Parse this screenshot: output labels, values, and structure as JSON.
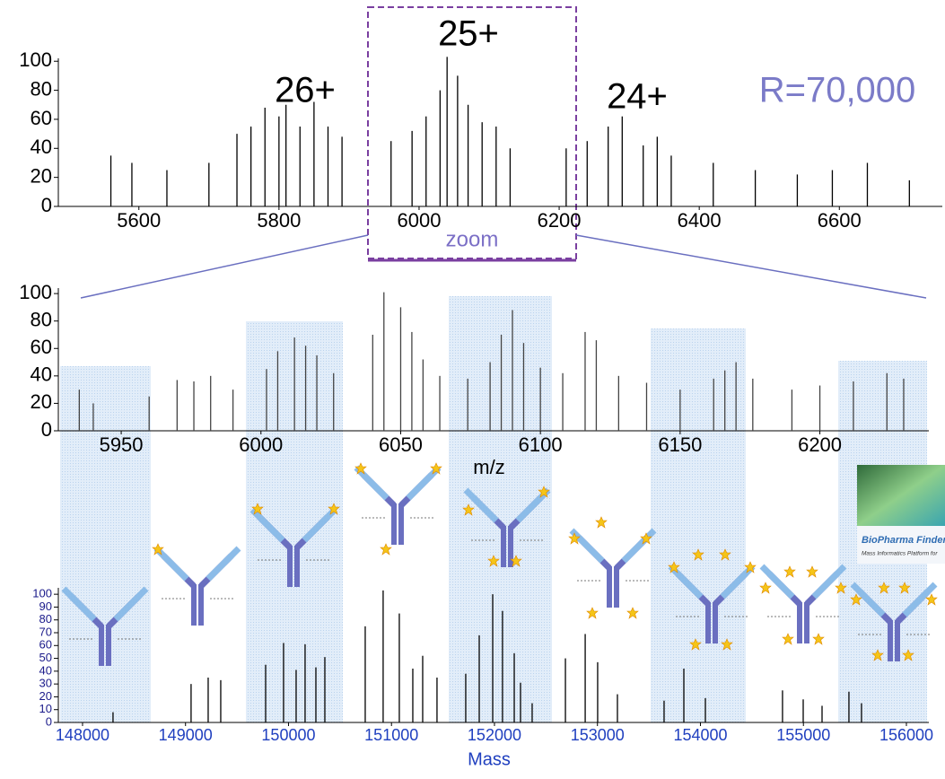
{
  "chart_data": [
    {
      "type": "stick",
      "annotations": [
        "26+",
        "25+",
        "24+"
      ],
      "resolution": "R=70,000",
      "zoom_label": "zoom",
      "color": "#000000",
      "x": [
        5560,
        5590,
        5640,
        5700,
        5740,
        5760,
        5780,
        5800,
        5810,
        5830,
        5850,
        5870,
        5890,
        5960,
        5990,
        6010,
        6030,
        6040,
        6055,
        6070,
        6090,
        6110,
        6130,
        6210,
        6240,
        6270,
        6290,
        6320,
        6340,
        6360,
        6420,
        6480,
        6540,
        6590,
        6640,
        6700
      ],
      "values": [
        35,
        30,
        25,
        30,
        50,
        55,
        68,
        62,
        70,
        55,
        72,
        55,
        48,
        45,
        52,
        62,
        80,
        103,
        90,
        70,
        58,
        55,
        40,
        40,
        45,
        55,
        62,
        42,
        48,
        35,
        30,
        25,
        22,
        25,
        30,
        18
      ],
      "xlim": [
        5485,
        6747
      ],
      "ylim": [
        0,
        102
      ],
      "xticks": [
        5600,
        5800,
        6000,
        6200,
        6400,
        6600
      ],
      "yticks": [
        0,
        20,
        40,
        60,
        80,
        100
      ]
    },
    {
      "type": "stick",
      "x_label": "m/z",
      "color": "#444444",
      "x": [
        5935,
        5940,
        5960,
        5970,
        5976,
        5982,
        5990,
        6002,
        6006,
        6012,
        6016,
        6020,
        6026,
        6040,
        6044,
        6050,
        6054,
        6058,
        6064,
        6074,
        6082,
        6086,
        6090,
        6094,
        6100,
        6108,
        6116,
        6120,
        6128,
        6138,
        6150,
        6162,
        6166,
        6170,
        6176,
        6190,
        6200,
        6212,
        6224,
        6230
      ],
      "values": [
        30,
        20,
        25,
        37,
        36,
        40,
        30,
        45,
        58,
        68,
        62,
        55,
        42,
        70,
        101,
        90,
        72,
        52,
        40,
        38,
        50,
        70,
        88,
        64,
        46,
        42,
        72,
        66,
        40,
        35,
        30,
        38,
        44,
        50,
        38,
        30,
        33,
        36,
        42,
        38
      ],
      "xlim": [
        5927.5,
        6239
      ],
      "ylim": [
        0,
        104
      ],
      "xticks": [
        5950,
        6000,
        6050,
        6100,
        6150,
        6200
      ],
      "yticks": [
        0,
        20,
        40,
        60,
        80,
        100
      ]
    },
    {
      "type": "stick",
      "x_label": "Mass",
      "color": "#000000",
      "x": [
        148296,
        149054,
        149220,
        149342,
        149778,
        149952,
        150074,
        150161,
        150266,
        150353,
        150745,
        150919,
        151076,
        151207,
        151303,
        151442,
        151721,
        151852,
        151983,
        152078,
        152192,
        152253,
        152366,
        152689,
        152881,
        153002,
        153194,
        153647,
        153839,
        154048,
        154797,
        154998,
        155181,
        155442,
        155564
      ],
      "values": [
        8,
        30,
        35,
        33,
        45,
        62,
        41,
        61,
        43,
        51,
        75,
        103,
        85,
        42,
        52,
        35,
        38,
        68,
        100,
        87,
        54,
        31,
        15,
        50,
        69,
        47,
        22,
        17,
        42,
        19,
        25,
        18,
        13,
        24,
        15
      ],
      "xlim": [
        147765,
        156218
      ],
      "ylim": [
        0,
        105
      ],
      "xticks": [
        148000,
        149000,
        150000,
        151000,
        152000,
        153000,
        154000,
        155000,
        156000
      ],
      "yticks": [
        0,
        10,
        20,
        30,
        40,
        50,
        60,
        70,
        80,
        90,
        100
      ]
    }
  ],
  "logo": {
    "title": "BioPharma Finder",
    "subtitle": "Mass Informatics Platform for"
  }
}
